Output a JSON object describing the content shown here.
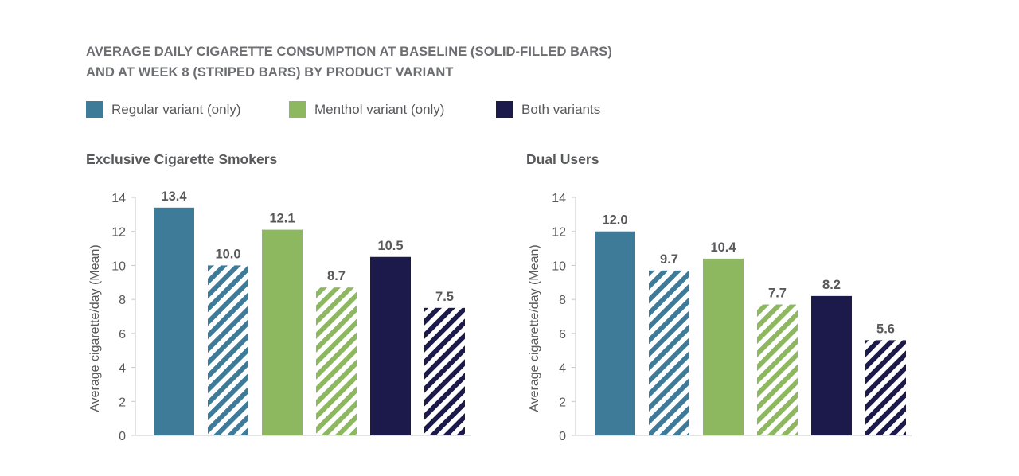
{
  "figure": {
    "title_lines": [
      "AVERAGE DAILY CIGARETTE CONSUMPTION AT BASELINE (SOLID-FILLED BARS)",
      "AND AT WEEK 8 (STRIPED BARS) BY PRODUCT VARIANT"
    ],
    "legend": [
      {
        "label": "Regular variant (only)",
        "color": "#3d7b98"
      },
      {
        "label": "Menthol variant (only)",
        "color": "#8db860"
      },
      {
        "label": "Both variants",
        "color": "#1c1a4a"
      }
    ]
  },
  "chart_data": [
    {
      "type": "bar",
      "title": "Exclusive Cigarette Smokers",
      "xlabel": "",
      "ylabel": "Average cigarette/day (Mean)",
      "ylim": [
        0,
        14
      ],
      "yticks": [
        "0",
        "2",
        "4",
        "6",
        "8",
        "10",
        "12",
        "14"
      ],
      "bars": [
        {
          "variant": "Regular variant (only)",
          "timepoint": "Baseline",
          "value": 13.4,
          "label": "13.4",
          "color": "#3d7b98",
          "striped": false
        },
        {
          "variant": "Regular variant (only)",
          "timepoint": "Week 8",
          "value": 10.0,
          "label": "10.0",
          "color": "#3d7b98",
          "striped": true
        },
        {
          "variant": "Menthol variant (only)",
          "timepoint": "Baseline",
          "value": 12.1,
          "label": "12.1",
          "color": "#8db860",
          "striped": false
        },
        {
          "variant": "Menthol variant (only)",
          "timepoint": "Week 8",
          "value": 8.7,
          "label": "8.7",
          "color": "#8db860",
          "striped": true
        },
        {
          "variant": "Both variants",
          "timepoint": "Baseline",
          "value": 10.5,
          "label": "10.5",
          "color": "#1c1a4a",
          "striped": false
        },
        {
          "variant": "Both variants",
          "timepoint": "Week 8",
          "value": 7.5,
          "label": "7.5",
          "color": "#1c1a4a",
          "striped": true
        }
      ]
    },
    {
      "type": "bar",
      "title": "Dual Users",
      "xlabel": "",
      "ylabel": "Average cigarette/day (Mean)",
      "ylim": [
        0,
        14
      ],
      "yticks": [
        "0",
        "2",
        "4",
        "6",
        "8",
        "10",
        "12",
        "14"
      ],
      "bars": [
        {
          "variant": "Regular variant (only)",
          "timepoint": "Baseline",
          "value": 12.0,
          "label": "12.0",
          "color": "#3d7b98",
          "striped": false
        },
        {
          "variant": "Regular variant (only)",
          "timepoint": "Week 8",
          "value": 9.7,
          "label": "9.7",
          "color": "#3d7b98",
          "striped": true
        },
        {
          "variant": "Menthol variant (only)",
          "timepoint": "Baseline",
          "value": 10.4,
          "label": "10.4",
          "color": "#8db860",
          "striped": false
        },
        {
          "variant": "Menthol variant (only)",
          "timepoint": "Week 8",
          "value": 7.7,
          "label": "7.7",
          "color": "#8db860",
          "striped": true
        },
        {
          "variant": "Both variants",
          "timepoint": "Baseline",
          "value": 8.2,
          "label": "8.2",
          "color": "#1c1a4a",
          "striped": false
        },
        {
          "variant": "Both variants",
          "timepoint": "Week 8",
          "value": 5.6,
          "label": "5.6",
          "color": "#1c1a4a",
          "striped": true
        }
      ]
    }
  ]
}
